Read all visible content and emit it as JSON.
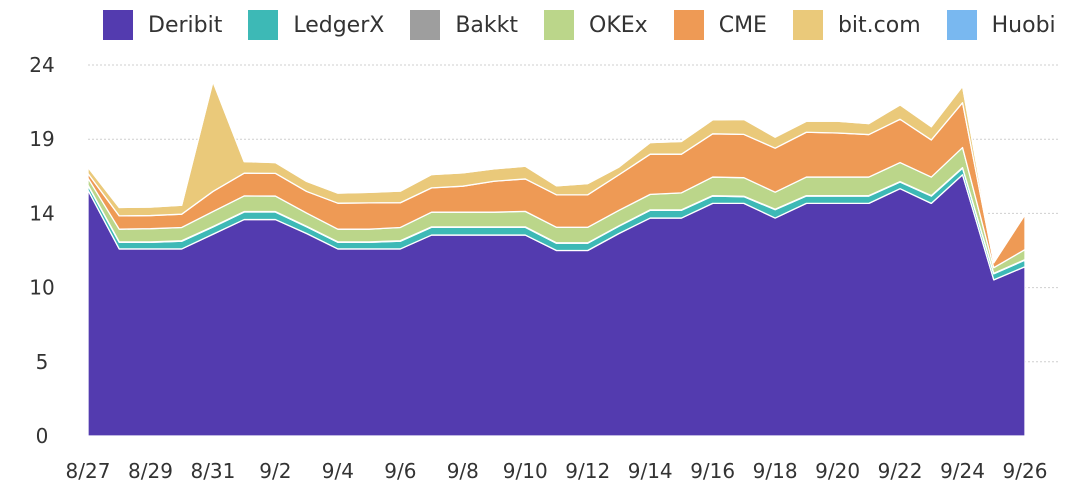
{
  "chart_data": {
    "type": "area",
    "stacked": true,
    "title": "",
    "xlabel": "",
    "ylabel": "",
    "ylim": [
      0,
      24
    ],
    "y_ticks": [
      {
        "value": 0,
        "label": "0"
      },
      {
        "value": 4.8,
        "label": "5"
      },
      {
        "value": 9.6,
        "label": "10"
      },
      {
        "value": 14.4,
        "label": "14"
      },
      {
        "value": 19.2,
        "label": "19"
      },
      {
        "value": 24,
        "label": "24"
      }
    ],
    "grid": "horizontal dashed",
    "legend_position": "top",
    "x": [
      "8/27",
      "8/28",
      "8/29",
      "8/30",
      "8/31",
      "9/1",
      "9/2",
      "9/3",
      "9/4",
      "9/5",
      "9/6",
      "9/7",
      "9/8",
      "9/9",
      "9/10",
      "9/11",
      "9/12",
      "9/13",
      "9/14",
      "9/15",
      "9/16",
      "9/17",
      "9/18",
      "9/19",
      "9/20",
      "9/21",
      "9/22",
      "9/23",
      "9/24",
      "9/25",
      "9/26"
    ],
    "x_tick_labels": [
      "8/27",
      "8/29",
      "8/31",
      "9/2",
      "9/4",
      "9/6",
      "9/8",
      "9/10",
      "9/12",
      "9/14",
      "9/16",
      "9/18",
      "9/20",
      "9/22",
      "9/24",
      "9/26"
    ],
    "series": [
      {
        "name": "Deribit",
        "color": "#533BAF",
        "values": [
          15.9,
          12.1,
          12.1,
          12.1,
          13.05,
          14.0,
          14.0,
          13.1,
          12.1,
          12.1,
          12.1,
          13.0,
          13.0,
          13.0,
          13.0,
          12.0,
          12.0,
          13.1,
          14.1,
          14.1,
          15.05,
          15.05,
          14.1,
          15.05,
          15.05,
          15.05,
          16.0,
          15.05,
          16.9,
          10.1,
          10.95
        ]
      },
      {
        "name": "LedgerX",
        "color": "#3DB9B6",
        "values": [
          0.3,
          0.43,
          0.43,
          0.5,
          0.47,
          0.49,
          0.49,
          0.43,
          0.43,
          0.43,
          0.5,
          0.5,
          0.5,
          0.5,
          0.5,
          0.47,
          0.47,
          0.47,
          0.5,
          0.5,
          0.47,
          0.43,
          0.54,
          0.47,
          0.47,
          0.47,
          0.43,
          0.47,
          0.43,
          0.39,
          0.43
        ]
      },
      {
        "name": "Bakkt",
        "color": "#9E9E9E",
        "values": [
          0.03,
          0.03,
          0.03,
          0.03,
          0.03,
          0.03,
          0.03,
          0.03,
          0.03,
          0.03,
          0.03,
          0.03,
          0.03,
          0.03,
          0.03,
          0.03,
          0.03,
          0.03,
          0.03,
          0.03,
          0.03,
          0.03,
          0.03,
          0.03,
          0.03,
          0.03,
          0.03,
          0.03,
          0.03,
          0.03,
          0.03
        ]
      },
      {
        "name": "OKEx",
        "color": "#BBD68A",
        "values": [
          0.45,
          0.82,
          0.85,
          0.86,
          0.97,
          1.01,
          1.0,
          0.86,
          0.82,
          0.82,
          0.86,
          0.95,
          0.95,
          0.95,
          1.0,
          1.0,
          1.0,
          1.0,
          1.0,
          1.1,
          1.2,
          1.2,
          1.1,
          1.2,
          1.2,
          1.2,
          1.23,
          1.2,
          1.3,
          0.37,
          0.65
        ]
      },
      {
        "name": "CME",
        "color": "#EE9A55",
        "values": [
          0.3,
          0.86,
          0.85,
          0.86,
          1.3,
          1.47,
          1.47,
          1.4,
          1.68,
          1.7,
          1.6,
          1.57,
          1.68,
          2.0,
          2.1,
          2.1,
          2.1,
          2.3,
          2.6,
          2.5,
          2.8,
          2.8,
          2.85,
          2.9,
          2.85,
          2.75,
          2.8,
          2.4,
          2.9,
          0.32,
          2.26
        ]
      },
      {
        "name": "bit.com",
        "color": "#EAC97A",
        "values": [
          0.4,
          0.54,
          0.55,
          0.58,
          7.1,
          0.75,
          0.7,
          0.65,
          0.65,
          0.68,
          0.75,
          0.86,
          0.86,
          0.8,
          0.82,
          0.58,
          0.73,
          0.5,
          0.75,
          0.82,
          0.9,
          0.97,
          0.71,
          0.71,
          0.76,
          0.71,
          0.93,
          0.86,
          1.07,
          0.1,
          0.15
        ]
      },
      {
        "name": "Huobi",
        "color": "#79B8F0",
        "values": [
          0.03,
          0.03,
          0.03,
          0.03,
          0.03,
          0.03,
          0.03,
          0.03,
          0.03,
          0.03,
          0.03,
          0.03,
          0.03,
          0.03,
          0.03,
          0.03,
          0.03,
          0.03,
          0.03,
          0.03,
          0.03,
          0.03,
          0.03,
          0.03,
          0.03,
          0.03,
          0.03,
          0.03,
          0.03,
          0.03,
          0.03
        ]
      }
    ]
  }
}
